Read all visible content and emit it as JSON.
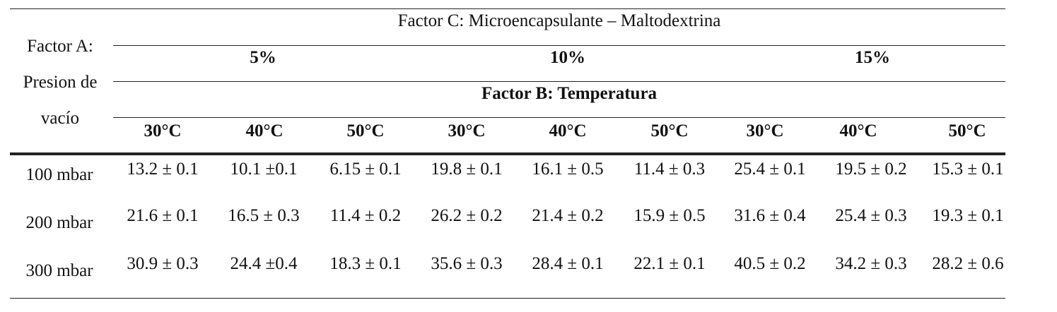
{
  "table": {
    "factor_a_lines": [
      "Factor A:",
      "Presion de",
      "vacío"
    ],
    "factor_c": "Factor C: Microencapsulante – Maltodextrina",
    "factor_b": "Factor B: Temperatura",
    "concentrations": [
      "5%",
      "10%",
      "15%"
    ],
    "temperatures": [
      "30°C",
      "40°C",
      "50°C",
      "30°C",
      "40°C",
      "50°C",
      "30°C",
      "40°C",
      "50°C"
    ],
    "rows": [
      {
        "label": "100 mbar",
        "cells": [
          "13.2 ± 0.1",
          "10.1 ±0.1",
          "6.15 ± 0.1",
          "19.8 ± 0.1",
          "16.1 ± 0.5",
          "11.4 ± 0.3",
          "25.4 ± 0.1",
          "19.5 ± 0.2",
          "15.3 ± 0.1"
        ]
      },
      {
        "label": "200 mbar",
        "cells": [
          "21.6 ± 0.1",
          "16.5 ± 0.3",
          "11.4 ± 0.2",
          "26.2 ± 0.2",
          "21.4 ± 0.2",
          "15.9 ± 0.5",
          "31.6 ± 0.4",
          "25.4 ± 0.3",
          "19.3 ± 0.1"
        ]
      },
      {
        "label": "300 mbar",
        "cells": [
          "30.9 ± 0.3",
          "24.4 ±0.4",
          "18.3 ± 0.1",
          "35.6 ± 0.3",
          "28.4 ± 0.1",
          "22.1 ± 0.1",
          "40.5 ± 0.2",
          "34.2 ± 0.3",
          "28.2 ± 0.6"
        ]
      }
    ]
  }
}
